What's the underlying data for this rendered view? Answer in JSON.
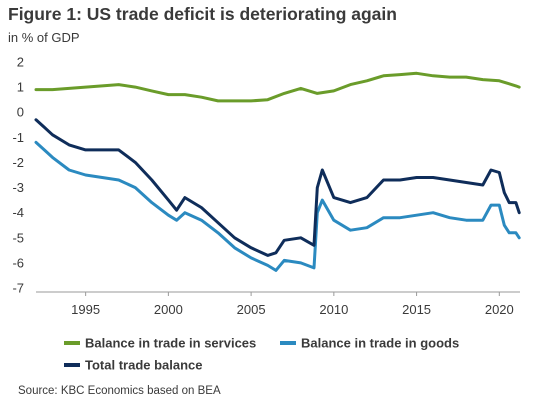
{
  "title": "Figure 1: US trade deficit is deteriorating again",
  "subtitle": "in % of GDP",
  "source": "Source: KBC Economics based on BEA",
  "chart_data": {
    "type": "line",
    "ylim": [
      -7,
      2
    ],
    "xlim": [
      1992,
      2021.25
    ],
    "y_ticks": [
      2,
      1,
      0,
      -1,
      -2,
      -3,
      -4,
      -5,
      -6,
      -7
    ],
    "x_ticks": [
      1995,
      2000,
      2005,
      2010,
      2015,
      2020
    ],
    "grid": false,
    "legend_position": "bottom",
    "series": [
      {
        "name": "Balance in trade in services",
        "color": "#6a9c2a",
        "points": [
          [
            1992.0,
            0.9
          ],
          [
            1993.0,
            0.9
          ],
          [
            1994.0,
            0.95
          ],
          [
            1995.0,
            1.0
          ],
          [
            1996.0,
            1.05
          ],
          [
            1997.0,
            1.1
          ],
          [
            1998.0,
            1.0
          ],
          [
            1999.0,
            0.85
          ],
          [
            2000.0,
            0.7
          ],
          [
            2001.0,
            0.7
          ],
          [
            2002.0,
            0.6
          ],
          [
            2003.0,
            0.45
          ],
          [
            2004.0,
            0.45
          ],
          [
            2005.0,
            0.45
          ],
          [
            2006.0,
            0.5
          ],
          [
            2007.0,
            0.75
          ],
          [
            2008.0,
            0.95
          ],
          [
            2009.0,
            0.75
          ],
          [
            2010.0,
            0.85
          ],
          [
            2011.0,
            1.1
          ],
          [
            2012.0,
            1.25
          ],
          [
            2013.0,
            1.45
          ],
          [
            2014.0,
            1.5
          ],
          [
            2015.0,
            1.55
          ],
          [
            2016.0,
            1.45
          ],
          [
            2017.0,
            1.4
          ],
          [
            2018.0,
            1.4
          ],
          [
            2019.0,
            1.3
          ],
          [
            2020.0,
            1.25
          ],
          [
            2020.5,
            1.15
          ],
          [
            2021.0,
            1.05
          ],
          [
            2021.2,
            1.0
          ]
        ]
      },
      {
        "name": "Balance in trade in goods",
        "color": "#2b8ac0",
        "points": [
          [
            1992.0,
            -1.2
          ],
          [
            1992.5,
            -1.5
          ],
          [
            1993.0,
            -1.8
          ],
          [
            1994.0,
            -2.3
          ],
          [
            1995.0,
            -2.5
          ],
          [
            1996.0,
            -2.6
          ],
          [
            1997.0,
            -2.7
          ],
          [
            1998.0,
            -3.0
          ],
          [
            1999.0,
            -3.6
          ],
          [
            2000.0,
            -4.1
          ],
          [
            2000.5,
            -4.3
          ],
          [
            2001.0,
            -4.0
          ],
          [
            2002.0,
            -4.3
          ],
          [
            2003.0,
            -4.8
          ],
          [
            2004.0,
            -5.4
          ],
          [
            2005.0,
            -5.8
          ],
          [
            2006.0,
            -6.1
          ],
          [
            2006.5,
            -6.3
          ],
          [
            2007.0,
            -5.9
          ],
          [
            2008.0,
            -6.0
          ],
          [
            2008.8,
            -6.2
          ],
          [
            2009.0,
            -4.0
          ],
          [
            2009.3,
            -3.5
          ],
          [
            2010.0,
            -4.3
          ],
          [
            2011.0,
            -4.7
          ],
          [
            2012.0,
            -4.6
          ],
          [
            2013.0,
            -4.2
          ],
          [
            2014.0,
            -4.2
          ],
          [
            2015.0,
            -4.1
          ],
          [
            2016.0,
            -4.0
          ],
          [
            2017.0,
            -4.2
          ],
          [
            2018.0,
            -4.3
          ],
          [
            2019.0,
            -4.3
          ],
          [
            2019.5,
            -3.7
          ],
          [
            2020.0,
            -3.7
          ],
          [
            2020.3,
            -4.5
          ],
          [
            2020.6,
            -4.8
          ],
          [
            2021.0,
            -4.8
          ],
          [
            2021.2,
            -5.0
          ]
        ]
      },
      {
        "name": "Total trade balance",
        "color": "#0f2d5a",
        "points": [
          [
            1992.0,
            -0.3
          ],
          [
            1992.5,
            -0.6
          ],
          [
            1993.0,
            -0.9
          ],
          [
            1994.0,
            -1.3
          ],
          [
            1995.0,
            -1.5
          ],
          [
            1996.0,
            -1.5
          ],
          [
            1997.0,
            -1.5
          ],
          [
            1998.0,
            -2.0
          ],
          [
            1999.0,
            -2.7
          ],
          [
            2000.0,
            -3.5
          ],
          [
            2000.5,
            -3.9
          ],
          [
            2001.0,
            -3.4
          ],
          [
            2002.0,
            -3.8
          ],
          [
            2003.0,
            -4.4
          ],
          [
            2004.0,
            -5.0
          ],
          [
            2005.0,
            -5.4
          ],
          [
            2006.0,
            -5.7
          ],
          [
            2006.5,
            -5.6
          ],
          [
            2007.0,
            -5.1
          ],
          [
            2008.0,
            -5.0
          ],
          [
            2008.8,
            -5.3
          ],
          [
            2009.0,
            -3.0
          ],
          [
            2009.3,
            -2.3
          ],
          [
            2010.0,
            -3.4
          ],
          [
            2011.0,
            -3.6
          ],
          [
            2012.0,
            -3.4
          ],
          [
            2013.0,
            -2.7
          ],
          [
            2014.0,
            -2.7
          ],
          [
            2015.0,
            -2.6
          ],
          [
            2016.0,
            -2.6
          ],
          [
            2017.0,
            -2.7
          ],
          [
            2018.0,
            -2.8
          ],
          [
            2019.0,
            -2.9
          ],
          [
            2019.5,
            -2.3
          ],
          [
            2020.0,
            -2.4
          ],
          [
            2020.3,
            -3.2
          ],
          [
            2020.6,
            -3.6
          ],
          [
            2021.0,
            -3.6
          ],
          [
            2021.2,
            -4.0
          ]
        ]
      }
    ]
  }
}
